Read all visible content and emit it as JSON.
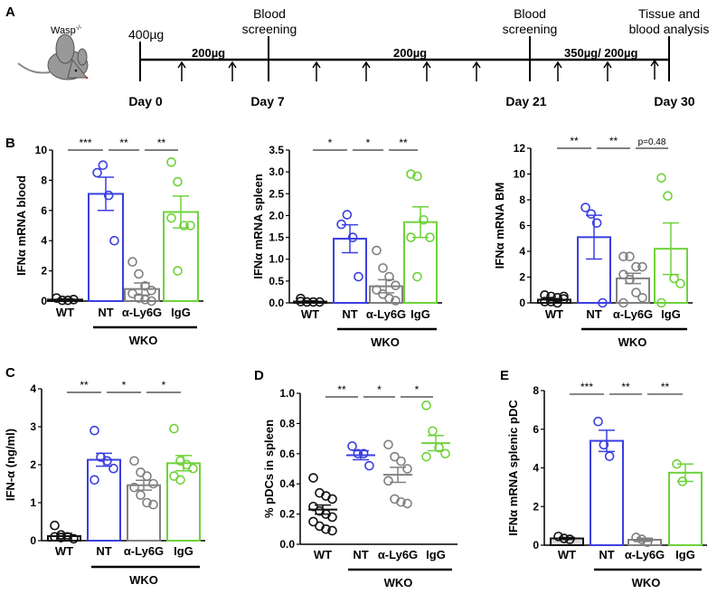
{
  "panel_labels": {
    "A": "A",
    "B": "B",
    "C": "C",
    "D": "D",
    "E": "E"
  },
  "timeline": {
    "mouse_label": "Wasp",
    "mouse_sup": "-/-",
    "dose_initial": "400µg",
    "dose_1": "200µg",
    "dose_2": "200µg",
    "dose_3": "350µg/ 200µg",
    "event_1": [
      "Blood",
      "screening"
    ],
    "event_2": [
      "Blood",
      "screening"
    ],
    "event_3": [
      "Tissue and",
      "blood analysis"
    ],
    "days": [
      "Day 0",
      "Day 7",
      "Day 21",
      "Day 30"
    ]
  },
  "colors": {
    "WT": "#111111",
    "NT": "#3b3fe0",
    "aLy6G": "#808080",
    "IgG": "#6fd23a"
  },
  "group_label": "WKO",
  "chart_data": [
    {
      "id": "B1",
      "type": "bar",
      "ylabel": "IFNα mRNA blood",
      "ylim": [
        0,
        10
      ],
      "ticks": [
        "0",
        "2",
        "4",
        "6",
        "8",
        "10"
      ],
      "categories": [
        "WT",
        "NT",
        "α-Ly6G",
        "IgG"
      ],
      "series": [
        {
          "name": "WT",
          "mean": 0.1,
          "sem": 0.05,
          "points": [
            0.2,
            0.05,
            0.05,
            0.1
          ]
        },
        {
          "name": "NT",
          "mean": 7.1,
          "sem": 1.1,
          "points": [
            8.5,
            9.0,
            7.0,
            4.0
          ]
        },
        {
          "name": "α-Ly6G",
          "mean": 0.8,
          "sem": 0.4,
          "points": [
            2.6,
            1.8,
            1.0,
            0.7,
            0.5,
            0.2,
            0.1,
            0.0
          ]
        },
        {
          "name": "IgG",
          "mean": 5.9,
          "sem": 1.05,
          "points": [
            9.2,
            7.9,
            5.0,
            5.0,
            5.5,
            2.0
          ]
        }
      ],
      "significance": [
        {
          "pair": [
            "WT",
            "NT"
          ],
          "label": "***"
        },
        {
          "pair": [
            "NT",
            "α-Ly6G"
          ],
          "label": "**"
        },
        {
          "pair": [
            "α-Ly6G",
            "IgG"
          ],
          "label": "**"
        }
      ]
    },
    {
      "id": "B2",
      "type": "bar",
      "ylabel": "IFNα mRNA spleen",
      "ylim": [
        0,
        3.5
      ],
      "ticks": [
        "0.0",
        "0.5",
        "1.0",
        "1.5",
        "2.0",
        "2.5",
        "3.0",
        "3.5"
      ],
      "categories": [
        "WT",
        "NT",
        "α-Ly6G",
        "IgG"
      ],
      "series": [
        {
          "name": "WT",
          "mean": 0.03,
          "sem": 0.02,
          "points": [
            0.1,
            0.02,
            0.02,
            0.02,
            0.03
          ]
        },
        {
          "name": "NT",
          "mean": 1.47,
          "sem": 0.32,
          "points": [
            1.8,
            2.02,
            1.5,
            0.6
          ]
        },
        {
          "name": "α-Ly6G",
          "mean": 0.38,
          "sem": 0.15,
          "points": [
            1.2,
            0.8,
            0.6,
            0.4,
            0.3,
            0.2,
            0.1,
            0.05
          ]
        },
        {
          "name": "IgG",
          "mean": 1.85,
          "sem": 0.35,
          "points": [
            2.95,
            2.9,
            1.9,
            1.5,
            1.5,
            0.6
          ]
        }
      ],
      "significance": [
        {
          "pair": [
            "WT",
            "NT"
          ],
          "label": "*"
        },
        {
          "pair": [
            "NT",
            "α-Ly6G"
          ],
          "label": "*"
        },
        {
          "pair": [
            "α-Ly6G",
            "IgG"
          ],
          "label": "**"
        }
      ]
    },
    {
      "id": "B3",
      "type": "bar",
      "ylabel": "IFNα mRNA BM",
      "ylim": [
        0,
        12
      ],
      "ticks": [
        "0",
        "2",
        "4",
        "6",
        "8",
        "10",
        "12"
      ],
      "categories": [
        "WT",
        "NT",
        "α-Ly6G",
        "IgG"
      ],
      "series": [
        {
          "name": "WT",
          "mean": 0.25,
          "sem": 0.08,
          "points": [
            0.6,
            0.5,
            0.4,
            0.3,
            0.1,
            0.1,
            0.0,
            0.5
          ]
        },
        {
          "name": "NT",
          "mean": 5.1,
          "sem": 1.7,
          "points": [
            7.4,
            6.9,
            6.2,
            0.0
          ]
        },
        {
          "name": "α-Ly6G",
          "mean": 1.9,
          "sem": 0.4,
          "points": [
            3.6,
            3.6,
            2.8,
            2.8,
            2.2,
            1.8,
            0.8,
            0.4,
            0.0
          ]
        },
        {
          "name": "IgG",
          "mean": 4.2,
          "sem": 2.0,
          "points": [
            9.7,
            8.3,
            1.9,
            1.5,
            0.0
          ]
        }
      ],
      "significance": [
        {
          "pair": [
            "WT",
            "NT"
          ],
          "label": "**"
        },
        {
          "pair": [
            "NT",
            "α-Ly6G"
          ],
          "label": "**"
        },
        {
          "pair": [
            "α-Ly6G",
            "IgG"
          ],
          "label": "p=0.48"
        }
      ]
    },
    {
      "id": "C",
      "type": "bar",
      "ylabel": "IFN-α (ng/ml)",
      "ylim": [
        0,
        4
      ],
      "ticks": [
        "0",
        "1",
        "2",
        "3",
        "4"
      ],
      "categories": [
        "WT",
        "NT",
        "α-Ly6G",
        "IgG"
      ],
      "series": [
        {
          "name": "WT",
          "mean": 0.12,
          "sem": 0.07,
          "points": [
            0.4,
            0.15,
            0.1,
            0.05,
            0.1,
            0.08
          ]
        },
        {
          "name": "NT",
          "mean": 2.13,
          "sem": 0.17,
          "points": [
            2.9,
            2.2,
            2.1,
            1.9,
            1.6
          ]
        },
        {
          "name": "α-Ly6G",
          "mean": 1.46,
          "sem": 0.13,
          "points": [
            2.1,
            1.8,
            1.7,
            1.5,
            1.4,
            1.2,
            1.0,
            0.95
          ]
        },
        {
          "name": "IgG",
          "mean": 2.04,
          "sem": 0.2,
          "points": [
            2.95,
            2.1,
            2.0,
            1.9,
            1.7,
            1.6
          ]
        }
      ],
      "significance": [
        {
          "pair": [
            "WT",
            "NT"
          ],
          "label": "**"
        },
        {
          "pair": [
            "NT",
            "α-Ly6G"
          ],
          "label": "*"
        },
        {
          "pair": [
            "α-Ly6G",
            "IgG"
          ],
          "label": "*"
        }
      ]
    },
    {
      "id": "D",
      "type": "scatter",
      "ylabel": "% pDCs in spleen",
      "ylim": [
        0,
        1
      ],
      "ticks": [
        "0.0",
        "0.2",
        "0.4",
        "0.6",
        "0.8",
        "1.0"
      ],
      "categories": [
        "WT",
        "NT",
        "α-Ly6G",
        "IgG"
      ],
      "series": [
        {
          "name": "WT",
          "mean": 0.23,
          "sem": 0.03,
          "points": [
            0.44,
            0.34,
            0.32,
            0.3,
            0.25,
            0.22,
            0.2,
            0.18,
            0.15,
            0.12,
            0.1,
            0.09
          ]
        },
        {
          "name": "NT",
          "mean": 0.59,
          "sem": 0.03,
          "points": [
            0.65,
            0.6,
            0.6,
            0.52
          ]
        },
        {
          "name": "α-Ly6G",
          "mean": 0.46,
          "sem": 0.05,
          "points": [
            0.66,
            0.58,
            0.55,
            0.5,
            0.42,
            0.3,
            0.28,
            0.27
          ]
        },
        {
          "name": "IgG",
          "mean": 0.67,
          "sem": 0.05,
          "points": [
            0.92,
            0.75,
            0.64,
            0.6,
            0.58
          ]
        }
      ],
      "significance": [
        {
          "pair": [
            "WT",
            "NT"
          ],
          "label": "**"
        },
        {
          "pair": [
            "NT",
            "α-Ly6G"
          ],
          "label": "*"
        },
        {
          "pair": [
            "α-Ly6G",
            "IgG"
          ],
          "label": "*"
        }
      ]
    },
    {
      "id": "E",
      "type": "bar",
      "ylabel": "IFNα mRNA splenic pDC",
      "ylim": [
        0,
        8
      ],
      "ticks": [
        "0",
        "2",
        "4",
        "6",
        "8"
      ],
      "categories": [
        "WT",
        "NT",
        "α-Ly6G",
        "IgG"
      ],
      "series": [
        {
          "name": "WT",
          "mean": 0.35,
          "sem": 0.05,
          "points": [
            0.45,
            0.35,
            0.3
          ]
        },
        {
          "name": "NT",
          "mean": 5.4,
          "sem": 0.55,
          "points": [
            6.4,
            5.2,
            4.6
          ]
        },
        {
          "name": "α-Ly6G",
          "mean": 0.28,
          "sem": 0.08,
          "points": [
            0.4,
            0.3,
            0.15
          ]
        },
        {
          "name": "IgG",
          "mean": 3.75,
          "sem": 0.45,
          "points": [
            4.2,
            3.3
          ]
        }
      ],
      "significance": [
        {
          "pair": [
            "WT",
            "NT"
          ],
          "label": "***"
        },
        {
          "pair": [
            "NT",
            "α-Ly6G"
          ],
          "label": "**"
        },
        {
          "pair": [
            "α-Ly6G",
            "IgG"
          ],
          "label": "**"
        }
      ]
    }
  ]
}
